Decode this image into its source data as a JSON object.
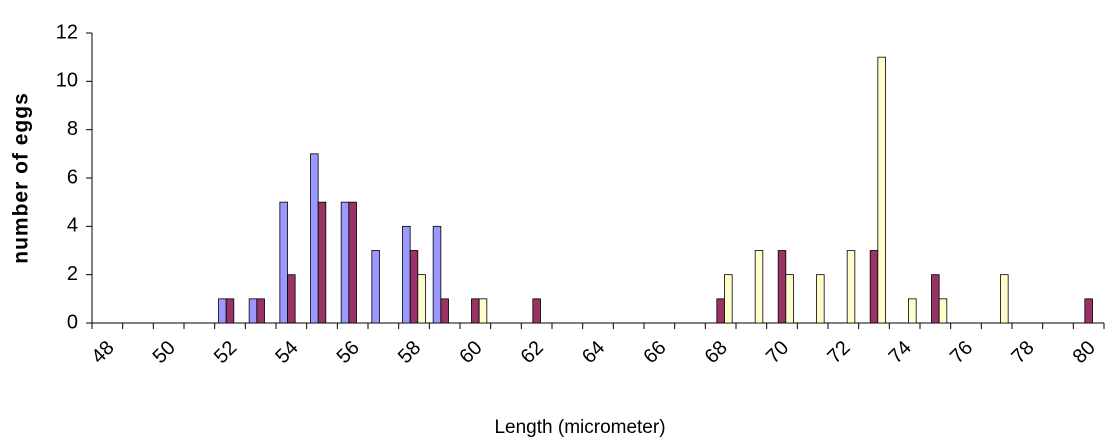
{
  "chart_data": {
    "type": "bar",
    "y_label": "number of eggs",
    "x_label": "Length (micrometer)",
    "categories": [
      48,
      null,
      50,
      null,
      52,
      null,
      54,
      null,
      56,
      null,
      58,
      null,
      60,
      null,
      62,
      null,
      64,
      null,
      66,
      null,
      68,
      null,
      70,
      null,
      72,
      null,
      74,
      null,
      76,
      null,
      78,
      null,
      80
    ],
    "series": [
      {
        "color": "#9999ff",
        "values": [
          0,
          0,
          0,
          0,
          1,
          1,
          5,
          7,
          5,
          3,
          4,
          4,
          0,
          0,
          0,
          0,
          0,
          0,
          0,
          0,
          0,
          0,
          0,
          0,
          0,
          0,
          0,
          0,
          0,
          0,
          0,
          0,
          0
        ]
      },
      {
        "color": "#993366",
        "values": [
          0,
          0,
          0,
          0,
          1,
          1,
          2,
          5,
          5,
          0,
          3,
          1,
          1,
          0,
          1,
          0,
          0,
          0,
          0,
          0,
          1,
          0,
          3,
          0,
          0,
          3,
          0,
          2,
          0,
          0,
          0,
          0,
          1
        ]
      },
      {
        "color": "#ffffcc",
        "values": [
          0,
          0,
          0,
          0,
          0,
          0,
          0,
          0,
          0,
          0,
          2,
          0,
          1,
          0,
          0,
          0,
          0,
          0,
          0,
          0,
          2,
          3,
          2,
          2,
          3,
          11,
          1,
          1,
          0,
          2,
          0,
          0,
          0
        ]
      }
    ],
    "ylim": [
      0,
      12
    ],
    "yticks": [
      0,
      2,
      4,
      6,
      8,
      10,
      12
    ],
    "grid": false
  }
}
